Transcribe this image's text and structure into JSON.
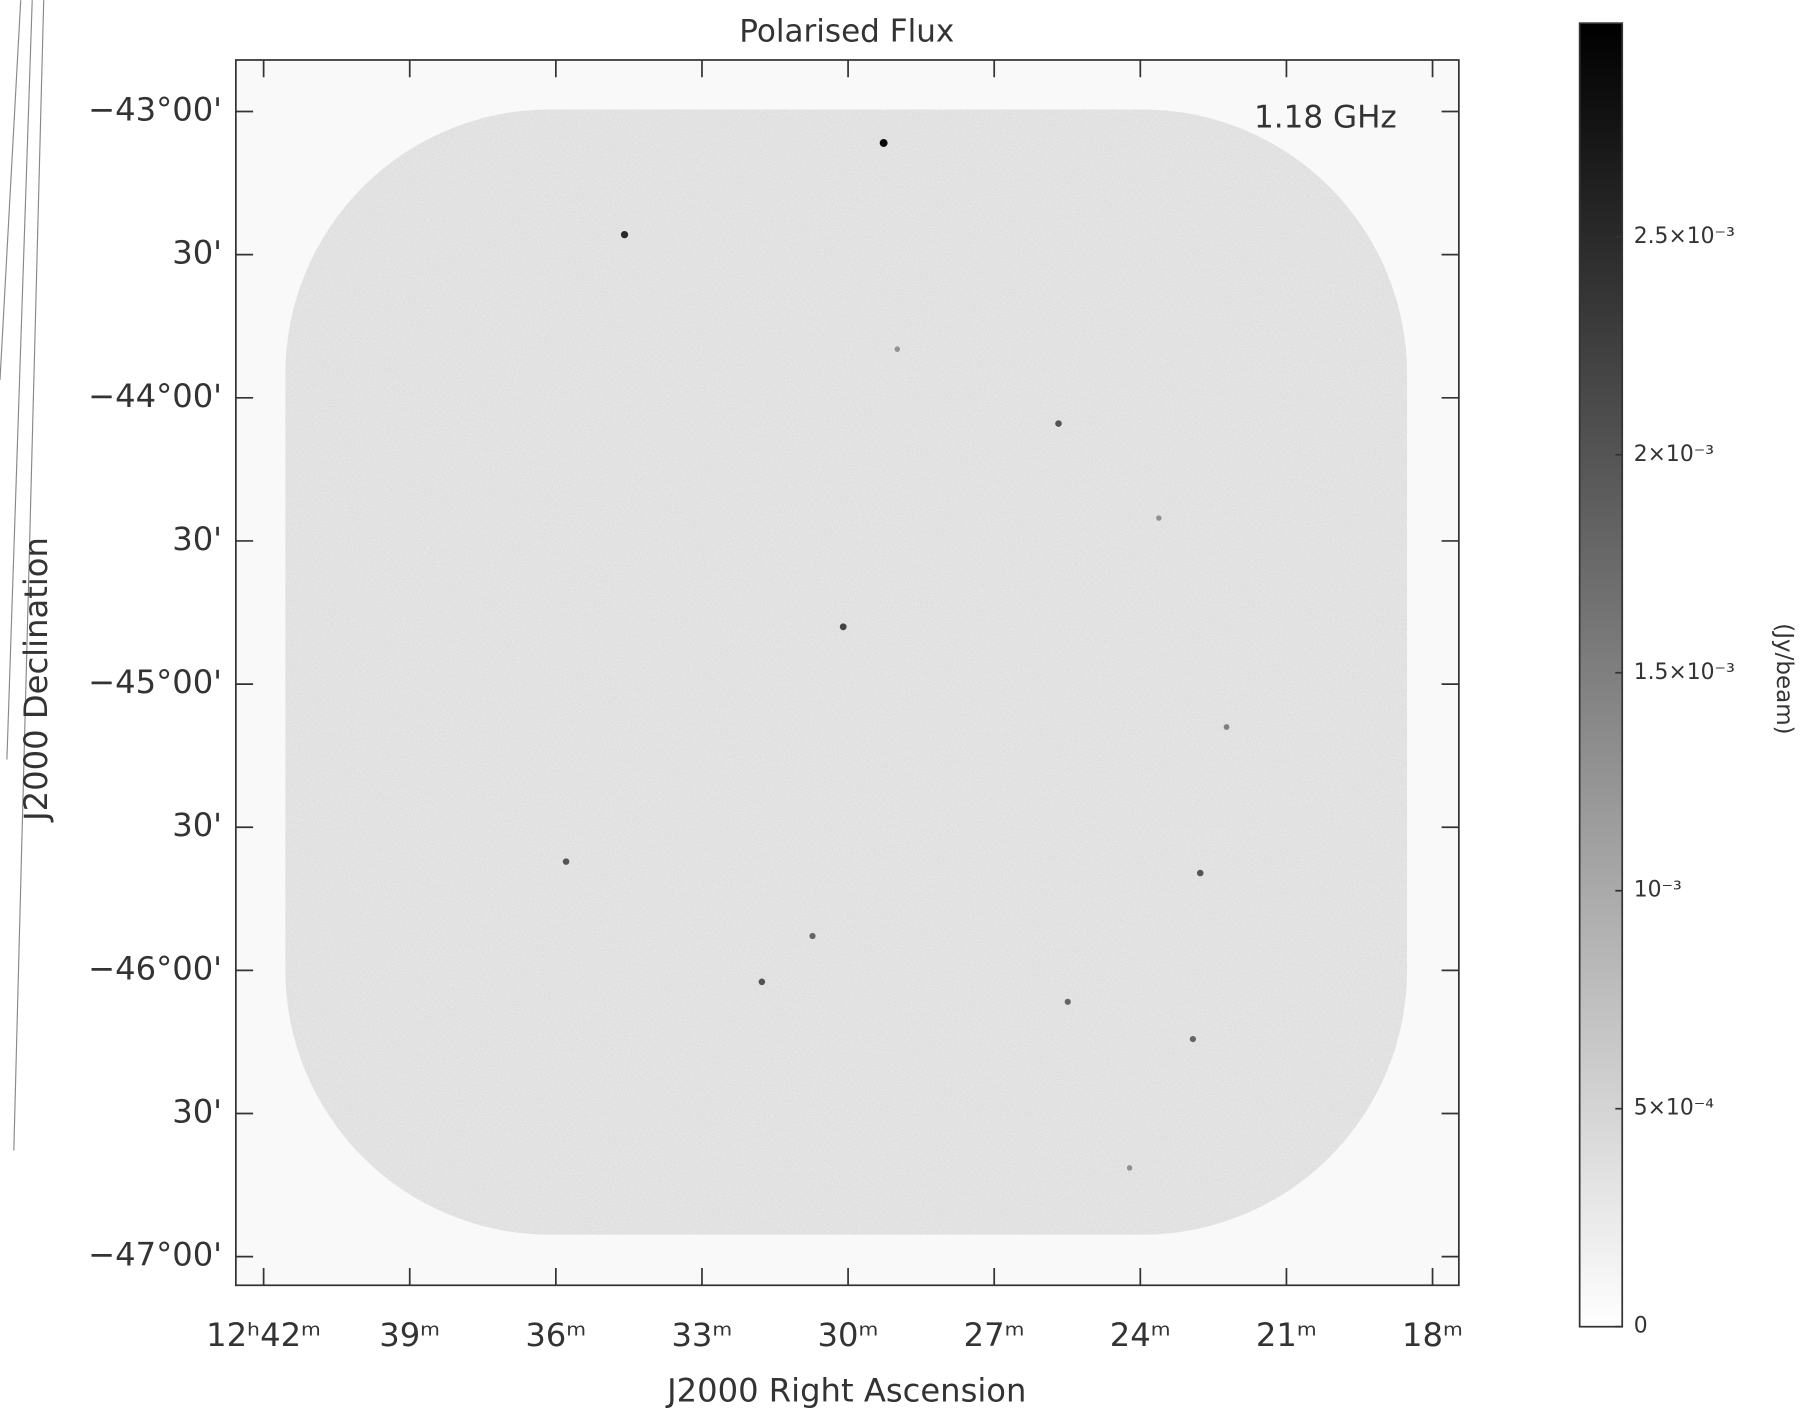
{
  "chart_data": {
    "type": "image",
    "title": "Polarised Flux",
    "annotation": "1.18 GHz",
    "xlabel": "J2000 Right Ascension",
    "ylabel": "J2000 Declination",
    "xlim": [
      42.57,
      17.46
    ],
    "xticks": [
      {
        "value": 42,
        "label": "12ʰ42ᵐ"
      },
      {
        "value": 39,
        "label": "39ᵐ"
      },
      {
        "value": 36,
        "label": "36ᵐ"
      },
      {
        "value": 33,
        "label": "33ᵐ"
      },
      {
        "value": 30,
        "label": "30ᵐ"
      },
      {
        "value": 27,
        "label": "27ᵐ"
      },
      {
        "value": 24,
        "label": "24ᵐ"
      },
      {
        "value": 21,
        "label": "21ᵐ"
      },
      {
        "value": 18,
        "label": "18ᵐ"
      }
    ],
    "ylim": [
      -47.1,
      -42.82
    ],
    "yticks": [
      {
        "value": -43,
        "label": "−43°00'"
      },
      {
        "value": -43.5,
        "label": "30'"
      },
      {
        "value": -44,
        "label": "−44°00'"
      },
      {
        "value": -44.5,
        "label": "30'"
      },
      {
        "value": -45,
        "label": "−45°00'"
      },
      {
        "value": -45.5,
        "label": "30'"
      },
      {
        "value": -46,
        "label": "−46°00'"
      },
      {
        "value": -46.5,
        "label": "30'"
      },
      {
        "value": -47,
        "label": "−47°00'"
      }
    ],
    "colorbar_label": "(Jy/beam)",
    "colorbar_colors": [
      "#ffffff",
      "#000000"
    ],
    "clim": [
      0,
      0.00299
    ],
    "cticks": [
      0,
      {
        "value": 0.0005,
        "label": "5×10⁻⁴"
      },
      {
        "value": 0.001,
        "label": "10⁻³"
      },
      {
        "value": 0.0015,
        "label": "1.5×10⁻³"
      },
      {
        "value": 0.002,
        "label": "2×10⁻³"
      },
      {
        "value": 0.0025,
        "label": "2.5×10⁻³"
      }
    ],
    "sources": {
      "x": [
        29.27,
        34.59,
        25.68,
        30.1,
        35.79,
        22.77,
        30.73,
        31.77,
        25.49,
        22.92,
        22.23,
        23.62,
        28.99,
        24.22
      ],
      "y": [
        -43.11,
        -43.43,
        -44.09,
        -44.8,
        -45.62,
        -45.66,
        -45.88,
        -46.04,
        -46.11,
        -46.24,
        -45.15,
        -44.42,
        -43.83,
        -46.69
      ],
      "values": [
        0.0029,
        0.0025,
        0.002,
        0.0022,
        0.002,
        0.002,
        0.0018,
        0.002,
        0.0018,
        0.0018,
        0.0015,
        0.0013,
        0.0013,
        0.0013
      ]
    }
  }
}
